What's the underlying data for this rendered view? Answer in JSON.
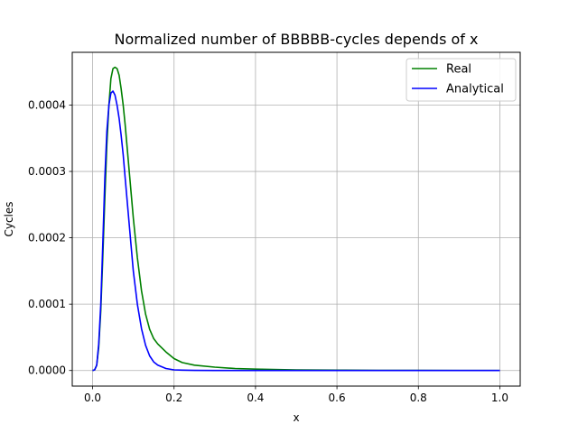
{
  "chart_data": {
    "type": "line",
    "title": "Normalized number of BBBBB-cycles depends of x",
    "xlabel": "x",
    "ylabel": "Cycles",
    "xlim": [
      -0.05,
      1.05
    ],
    "ylim": [
      -2.35e-05,
      0.0004795
    ],
    "grid": true,
    "legend": "top-right",
    "x_ticks": [
      {
        "value": 0.0,
        "label": "0.0"
      },
      {
        "value": 0.2,
        "label": "0.2"
      },
      {
        "value": 0.4,
        "label": "0.4"
      },
      {
        "value": 0.6,
        "label": "0.6"
      },
      {
        "value": 0.8,
        "label": "0.8"
      },
      {
        "value": 1.0,
        "label": "1.0"
      }
    ],
    "y_ticks": [
      {
        "value": 0.0,
        "label": "0.0000"
      },
      {
        "value": 0.0001,
        "label": "0.0001"
      },
      {
        "value": 0.0002,
        "label": "0.0002"
      },
      {
        "value": 0.0003,
        "label": "0.0003"
      },
      {
        "value": 0.0004,
        "label": "0.0004"
      }
    ],
    "series": [
      {
        "name": "Real",
        "color": "#008000",
        "x": [
          0,
          0.005,
          0.01,
          0.015,
          0.02,
          0.025,
          0.03,
          0.035,
          0.04,
          0.045,
          0.05,
          0.055,
          0.06,
          0.065,
          0.07,
          0.075,
          0.08,
          0.09,
          0.1,
          0.11,
          0.12,
          0.13,
          0.14,
          0.15,
          0.16,
          0.18,
          0.2,
          0.22,
          0.25,
          0.3,
          0.35,
          0.4,
          0.5,
          0.6,
          0.7,
          0.8,
          0.9,
          1.0
        ],
        "y": [
          0,
          1e-06,
          8e-06,
          3.5e-05,
          9e-05,
          0.00017,
          0.00026,
          0.00034,
          0.0004,
          0.00044,
          0.000455,
          0.000457,
          0.000455,
          0.000445,
          0.000425,
          0.0004,
          0.00037,
          0.0003,
          0.00023,
          0.00017,
          0.00012,
          8.5e-05,
          6.2e-05,
          4.8e-05,
          4e-05,
          2.8e-05,
          1.8e-05,
          1.2e-05,
          8e-06,
          5e-06,
          3e-06,
          2e-06,
          1e-06,
          5e-07,
          2e-07,
          1e-07,
          5e-08,
          0
        ]
      },
      {
        "name": "Analytical",
        "color": "#0000ff",
        "x": [
          0,
          0.005,
          0.01,
          0.015,
          0.02,
          0.025,
          0.03,
          0.035,
          0.04,
          0.045,
          0.05,
          0.055,
          0.06,
          0.065,
          0.07,
          0.075,
          0.08,
          0.09,
          0.1,
          0.11,
          0.12,
          0.13,
          0.14,
          0.15,
          0.16,
          0.18,
          0.2,
          0.22,
          0.25,
          0.3,
          0.4,
          0.5,
          0.6,
          0.8,
          1.0
        ],
        "y": [
          0,
          1e-06,
          8e-06,
          4e-05,
          0.0001,
          0.00019,
          0.00029,
          0.00036,
          0.0004,
          0.000418,
          0.000421,
          0.000415,
          0.0004,
          0.00038,
          0.000355,
          0.000325,
          0.00029,
          0.00022,
          0.00015,
          0.0001,
          6.3e-05,
          3.8e-05,
          2.2e-05,
          1.3e-05,
          8e-06,
          3e-06,
          1e-06,
          5e-07,
          2e-07,
          0,
          0,
          0,
          0,
          0,
          0
        ]
      }
    ]
  }
}
